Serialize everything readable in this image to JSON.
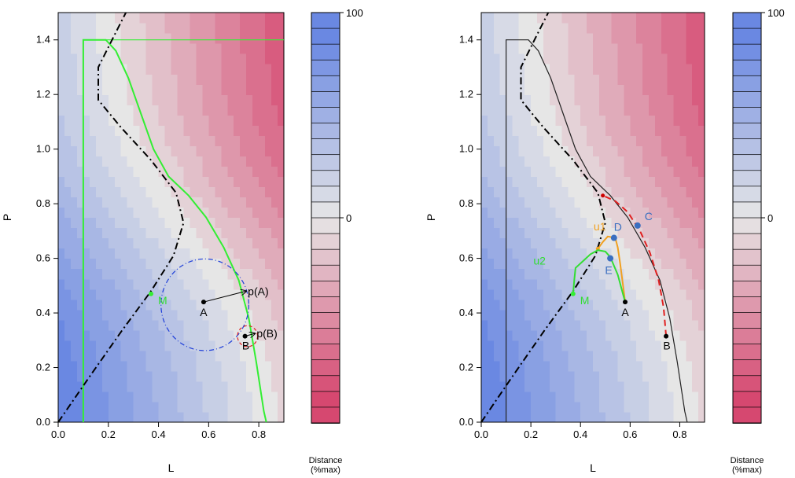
{
  "chart_data": [
    {
      "type": "contour",
      "xlabel": "L",
      "ylabel": "P",
      "xlim": [
        0,
        0.9
      ],
      "ylim": [
        0,
        1.5
      ],
      "x_ticks": [
        "0.0",
        "0.2",
        "0.4",
        "0.6",
        "0.8"
      ],
      "y_ticks": [
        "0.0",
        "0.2",
        "0.4",
        "0.6",
        "0.8",
        "1.0",
        "1.2",
        "1.4"
      ],
      "colorbar": {
        "caption": [
          "Distance",
          "(%max)"
        ],
        "labels": [
          "100",
          "0"
        ],
        "top": "#4169e1",
        "mid": "#e6e6e6",
        "bottom": "#d5406a"
      },
      "feasible_boundary": {
        "color": "#33ee33",
        "points": [
          [
            0.1,
            0
          ],
          [
            0.1,
            1.4
          ],
          [
            0.19,
            1.4
          ],
          [
            0.23,
            1.36
          ],
          [
            0.28,
            1.26
          ],
          [
            0.33,
            1.13
          ],
          [
            0.38,
            1.0
          ],
          [
            0.44,
            0.9
          ],
          [
            0.52,
            0.83
          ],
          [
            0.59,
            0.75
          ],
          [
            0.66,
            0.64
          ],
          [
            0.72,
            0.52
          ],
          [
            0.76,
            0.38
          ],
          [
            0.79,
            0.22
          ],
          [
            0.82,
            0.04
          ],
          [
            0.83,
            0
          ]
        ],
        "top_line": [
          [
            0.1,
            1.4
          ],
          [
            0.9,
            1.4
          ]
        ]
      },
      "dash_dot_curve": {
        "color": "#000000",
        "points": [
          [
            0,
            0
          ],
          [
            0.12,
            0.16
          ],
          [
            0.25,
            0.33
          ],
          [
            0.37,
            0.48
          ],
          [
            0.46,
            0.61
          ],
          [
            0.5,
            0.73
          ],
          [
            0.47,
            0.84
          ],
          [
            0.37,
            0.96
          ],
          [
            0.25,
            1.08
          ],
          [
            0.16,
            1.18
          ],
          [
            0.16,
            1.3
          ],
          [
            0.22,
            1.41
          ],
          [
            0.27,
            1.5
          ]
        ]
      },
      "points": [
        {
          "label": "A",
          "x": 0.58,
          "y": 0.44,
          "color": "#000000"
        },
        {
          "label": "B",
          "x": 0.745,
          "y": 0.315,
          "color": "#000000"
        },
        {
          "label": "M",
          "x": 0.37,
          "y": 0.47,
          "color": "#33ee33"
        }
      ],
      "projections": [
        {
          "label": "p(A)",
          "from": [
            0.58,
            0.44
          ],
          "to": [
            0.75,
            0.48
          ]
        },
        {
          "label": "p(B)",
          "from": [
            0.745,
            0.315
          ],
          "to": [
            0.785,
            0.325
          ]
        }
      ],
      "circles": [
        {
          "center": [
            0.585,
            0.43
          ],
          "radius": 0.175,
          "color": "#1f3fd9",
          "style": "dash-dot"
        },
        {
          "center": [
            0.755,
            0.315
          ],
          "radius": 0.04,
          "color": "#e02020",
          "style": "dashed"
        }
      ]
    },
    {
      "type": "contour",
      "xlabel": "L",
      "ylabel": "P",
      "xlim": [
        0,
        0.9
      ],
      "ylim": [
        0,
        1.5
      ],
      "x_ticks": [
        "0.0",
        "0.2",
        "0.4",
        "0.6",
        "0.8"
      ],
      "y_ticks": [
        "0.0",
        "0.2",
        "0.4",
        "0.6",
        "0.8",
        "1.0",
        "1.2",
        "1.4"
      ],
      "colorbar": {
        "caption": [
          "Distance",
          "(%max)"
        ],
        "labels": [
          "100",
          "0"
        ],
        "top": "#4169e1",
        "mid": "#e6e6e6",
        "bottom": "#d5406a"
      },
      "feasible_boundary": {
        "color": "#222222",
        "points": [
          [
            0.1,
            0
          ],
          [
            0.1,
            1.4
          ],
          [
            0.19,
            1.4
          ],
          [
            0.23,
            1.36
          ],
          [
            0.28,
            1.26
          ],
          [
            0.33,
            1.13
          ],
          [
            0.38,
            1.0
          ],
          [
            0.44,
            0.9
          ],
          [
            0.52,
            0.83
          ],
          [
            0.59,
            0.75
          ],
          [
            0.66,
            0.64
          ],
          [
            0.72,
            0.52
          ],
          [
            0.76,
            0.38
          ],
          [
            0.79,
            0.22
          ],
          [
            0.82,
            0.04
          ],
          [
            0.83,
            0
          ]
        ]
      },
      "dash_dot_curve": {
        "color": "#000000",
        "points": [
          [
            0,
            0
          ],
          [
            0.12,
            0.16
          ],
          [
            0.25,
            0.33
          ],
          [
            0.37,
            0.48
          ],
          [
            0.46,
            0.61
          ],
          [
            0.5,
            0.73
          ],
          [
            0.47,
            0.84
          ],
          [
            0.37,
            0.96
          ],
          [
            0.25,
            1.08
          ],
          [
            0.16,
            1.18
          ],
          [
            0.16,
            1.3
          ],
          [
            0.22,
            1.41
          ],
          [
            0.27,
            1.5
          ]
        ]
      },
      "points": [
        {
          "label": "A",
          "x": 0.58,
          "y": 0.44,
          "color": "#000000"
        },
        {
          "label": "B",
          "x": 0.745,
          "y": 0.315,
          "color": "#000000"
        },
        {
          "label": "M",
          "x": 0.37,
          "y": 0.47,
          "color": "#33ee33"
        },
        {
          "label": "C",
          "x": 0.63,
          "y": 0.72,
          "color": "#3a6fc0"
        },
        {
          "label": "D",
          "x": 0.535,
          "y": 0.675,
          "color": "#3a6fc0"
        },
        {
          "label": "E",
          "x": 0.52,
          "y": 0.6,
          "color": "#3a6fc0"
        }
      ],
      "paths": [
        {
          "label": "u1",
          "color": "#f0a020",
          "style": "solid",
          "points": [
            [
              0.58,
              0.44
            ],
            [
              0.57,
              0.51
            ],
            [
              0.56,
              0.58
            ],
            [
              0.55,
              0.64
            ],
            [
              0.54,
              0.675
            ],
            [
              0.51,
              0.68
            ],
            [
              0.49,
              0.66
            ],
            [
              0.47,
              0.635
            ]
          ]
        },
        {
          "label": "u2",
          "color": "#33dd33",
          "style": "solid",
          "points": [
            [
              0.58,
              0.44
            ],
            [
              0.55,
              0.54
            ],
            [
              0.52,
              0.605
            ],
            [
              0.5,
              0.625
            ],
            [
              0.47,
              0.63
            ],
            [
              0.44,
              0.615
            ],
            [
              0.41,
              0.59
            ],
            [
              0.38,
              0.565
            ],
            [
              0.375,
              0.52
            ],
            [
              0.37,
              0.47
            ]
          ]
        },
        {
          "label": "",
          "color": "#e02020",
          "style": "dashed",
          "points": [
            [
              0.745,
              0.315
            ],
            [
              0.735,
              0.42
            ],
            [
              0.715,
              0.52
            ],
            [
              0.68,
              0.62
            ],
            [
              0.64,
              0.7
            ],
            [
              0.59,
              0.77
            ],
            [
              0.54,
              0.81
            ],
            [
              0.49,
              0.83
            ]
          ]
        }
      ]
    }
  ]
}
